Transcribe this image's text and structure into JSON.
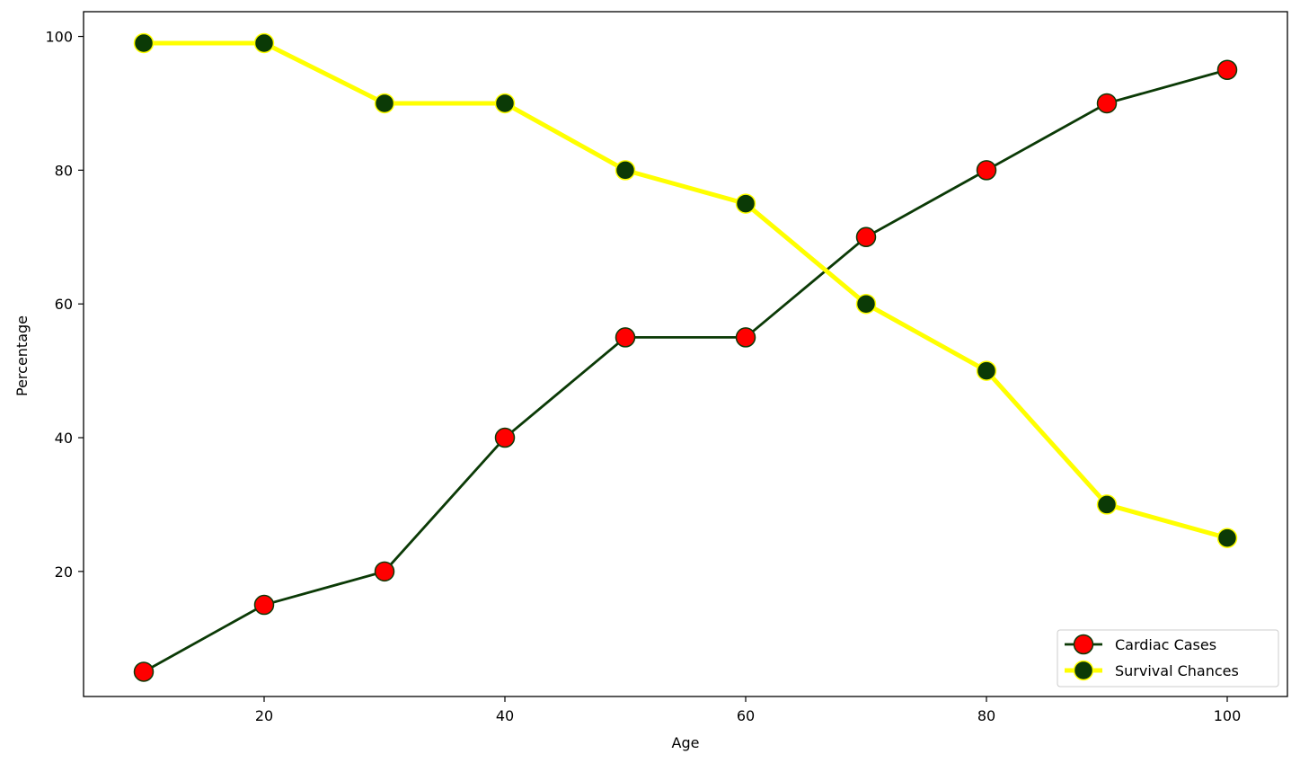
{
  "chart_data": {
    "type": "line",
    "title": "",
    "xlabel": "Age",
    "ylabel": "Percentage",
    "x": [
      10,
      20,
      30,
      40,
      50,
      60,
      70,
      80,
      90,
      100
    ],
    "xlim": [
      5,
      105
    ],
    "ylim": [
      1.3,
      103.7
    ],
    "xticks": [
      20,
      40,
      60,
      80,
      100
    ],
    "yticks": [
      20,
      40,
      60,
      80,
      100
    ],
    "grid": false,
    "legend_position": "lower-right",
    "series": [
      {
        "name": "Cardiac Cases",
        "values": [
          5,
          15,
          20,
          40,
          55,
          55,
          70,
          80,
          90,
          95
        ],
        "line_color": "#0b3a06",
        "marker_color": "#ff0000",
        "marker_edge_color": "#0b3a06"
      },
      {
        "name": "Survival Chances",
        "values": [
          99,
          99,
          90,
          90,
          80,
          75,
          60,
          50,
          30,
          25
        ],
        "line_color": "#ffff00",
        "marker_color": "#0b3a06",
        "marker_edge_color": "#ffff00"
      }
    ]
  }
}
